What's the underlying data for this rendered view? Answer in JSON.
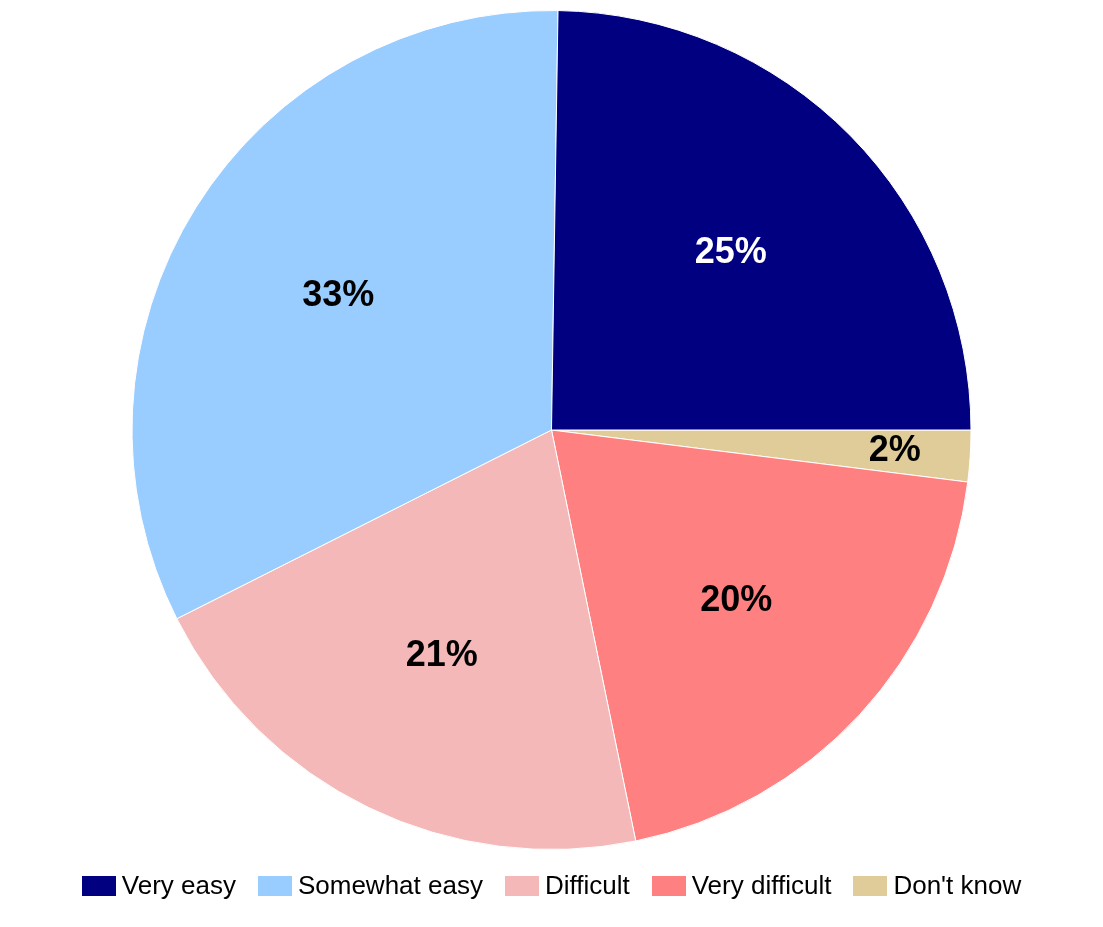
{
  "chart_data": {
    "type": "pie",
    "categories": [
      "Very easy",
      "Somewhat easy",
      "Difficult",
      "Very difficult",
      "Don't know"
    ],
    "values": [
      25,
      33,
      21,
      20,
      2
    ],
    "colors": [
      "#000080",
      "#99ccff",
      "#f5b8b8",
      "#ff8080",
      "#e0cc99"
    ],
    "value_labels": [
      "25%",
      "33%",
      "21%",
      "20%",
      "2%"
    ],
    "legend": "bottom"
  }
}
